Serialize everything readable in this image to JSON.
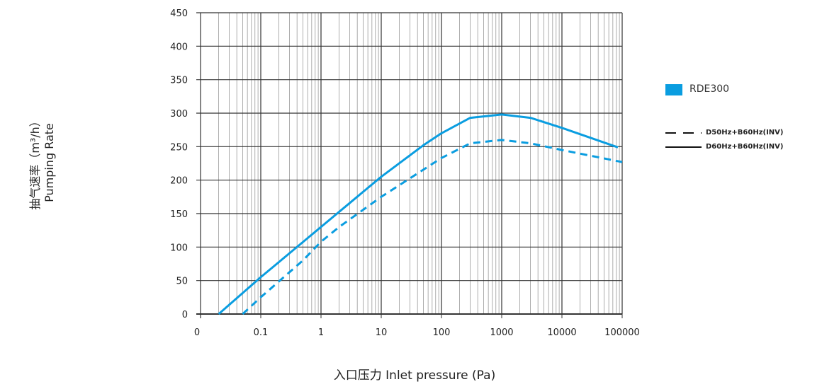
{
  "chart_data": {
    "type": "line",
    "xlabel": "入口压力 Inlet pressure (Pa)",
    "ylabel_cn": "抽气速率（m³/h）",
    "ylabel_en": "Pumping Rate",
    "x_scale": "log",
    "xlim": [
      0.01,
      100000
    ],
    "ylim": [
      0,
      450
    ],
    "x_tick_labels": [
      "0",
      "0.1",
      "1",
      "10",
      "100",
      "1000",
      "10000",
      "100000"
    ],
    "y_ticks": [
      0,
      50,
      100,
      150,
      200,
      250,
      300,
      350,
      400,
      450
    ],
    "grid": true,
    "legend_placement": "right",
    "model_label": "RDE300",
    "color": "#0a9de0",
    "series": [
      {
        "name": "D50Hz+B60Hz(INV)",
        "style": "dashed",
        "points": [
          [
            0.05,
            0
          ],
          [
            0.1,
            25
          ],
          [
            0.5,
            80
          ],
          [
            1,
            108
          ],
          [
            2,
            130
          ],
          [
            10,
            175
          ],
          [
            100,
            233
          ],
          [
            300,
            255
          ],
          [
            1000,
            260
          ],
          [
            3000,
            255
          ],
          [
            10000,
            245
          ],
          [
            100000,
            227
          ]
        ]
      },
      {
        "name": "D60Hz+B60Hz(INV)",
        "style": "solid",
        "points": [
          [
            0.02,
            0
          ],
          [
            0.1,
            55
          ],
          [
            1,
            130
          ],
          [
            10,
            205
          ],
          [
            50,
            252
          ],
          [
            100,
            270
          ],
          [
            300,
            293
          ],
          [
            1000,
            298
          ],
          [
            3000,
            293
          ],
          [
            10000,
            278
          ],
          [
            85000,
            249
          ]
        ]
      }
    ]
  }
}
